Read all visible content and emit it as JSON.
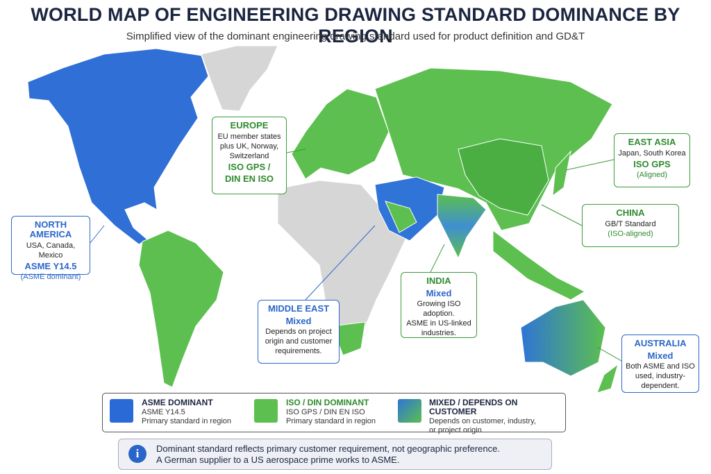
{
  "header": {
    "title": "WORLD MAP OF ENGINEERING DRAWING STANDARD DOMINANCE BY REGION",
    "subtitle": "Simplified view of the dominant engineering drawing standard used for product definition and GD&T"
  },
  "callouts": {
    "europe": {
      "title": "EUROPE",
      "lines": [
        "EU member states",
        "plus UK, Norway,",
        "Switzerland"
      ],
      "standard": [
        "ISO GPS /",
        "DIN EN ISO"
      ]
    },
    "east_asia": {
      "title": "EAST ASIA",
      "lines": [
        "Japan, South Korea"
      ],
      "standard": [
        "ISO GPS"
      ],
      "note": "(Aligned)"
    },
    "north_america": {
      "title": "NORTH AMERICA",
      "lines": [
        "USA, Canada, Mexico"
      ],
      "standard": [
        "ASME Y14.5"
      ],
      "note": "(ASME dominant)"
    },
    "china": {
      "title": "CHINA",
      "lines": [
        "GB/T Standard"
      ],
      "note": "(ISO-aligned)"
    },
    "india": {
      "title": "INDIA",
      "standard": [
        "Mixed"
      ],
      "lines": [
        "Growing ISO adoption.",
        "ASME in US-linked",
        "industries."
      ]
    },
    "middle_east": {
      "title": "MIDDLE EAST",
      "standard": [
        "Mixed"
      ],
      "lines": [
        "Depends on project",
        "origin and customer",
        "requirements."
      ]
    },
    "australia": {
      "title": "AUSTRALIA",
      "standard": [
        "Mixed"
      ],
      "lines": [
        "Both ASME and ISO",
        "used, industry-",
        "dependent."
      ]
    }
  },
  "legend": [
    {
      "title": "ASME DOMINANT",
      "lines": [
        "ASME Y14.5",
        "Primary standard in region"
      ]
    },
    {
      "title": "ISO / DIN DOMINANT",
      "lines": [
        "ISO GPS / DIN EN ISO",
        "Primary standard in region"
      ]
    },
    {
      "title": "MIXED / DEPENDS ON CUSTOMER",
      "lines": [
        "Depends on customer, industry,",
        "or project origin"
      ]
    }
  ],
  "note": {
    "icon": "i",
    "lines": [
      "Dominant standard reflects primary customer requirement, not geographic preference.",
      "A German supplier to a US aerospace prime works to ASME."
    ]
  }
}
